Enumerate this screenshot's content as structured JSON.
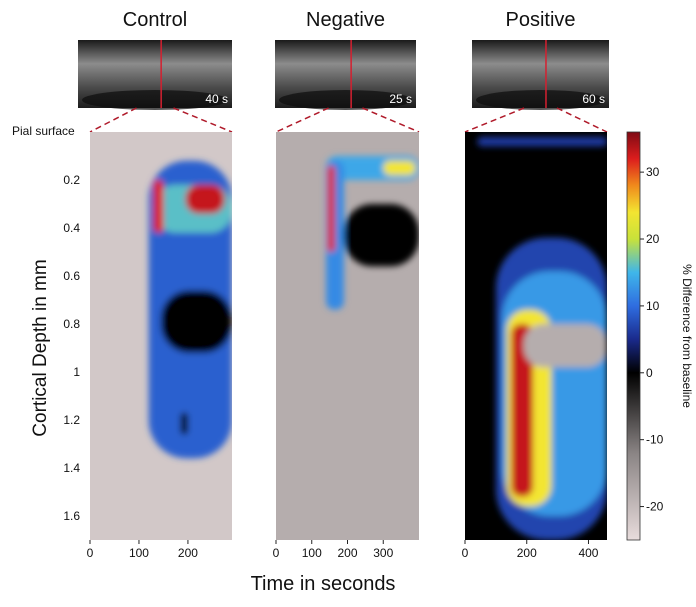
{
  "chart_data": {
    "type": "heatmap",
    "ylabel": "Cortical Depth in mm",
    "xlabel": "Time in seconds",
    "top_label": "Pial surface",
    "y_ticks": [
      0.2,
      0.4,
      0.6,
      0.8,
      1,
      1.2,
      1.4,
      1.6
    ],
    "y_tick_labels": [
      "0.2",
      "0.4",
      "0.6",
      "0.8",
      "1",
      "1.2",
      "1.4",
      "1.6"
    ],
    "ylim": [
      0,
      1.7
    ],
    "colorbar": {
      "label": "% Difference from baseline",
      "range": [
        -25,
        36
      ],
      "ticks": [
        30,
        20,
        10,
        0,
        -10,
        -20
      ],
      "tick_labels": [
        "30",
        "20",
        "10",
        "0",
        "-10",
        "-20"
      ],
      "stops": [
        {
          "value": -25,
          "color": "#e8dcdc"
        },
        {
          "value": -12,
          "color": "#8a8484"
        },
        {
          "value": 0,
          "color": "#000000"
        },
        {
          "value": 5,
          "color": "#1a2a8c"
        },
        {
          "value": 10,
          "color": "#2f6de0"
        },
        {
          "value": 15,
          "color": "#3fb6ea"
        },
        {
          "value": 20,
          "color": "#c8e23a"
        },
        {
          "value": 24,
          "color": "#f3e531"
        },
        {
          "value": 28,
          "color": "#f08a1c"
        },
        {
          "value": 32,
          "color": "#dc1d1d"
        },
        {
          "value": 36,
          "color": "#7f0a14"
        }
      ]
    },
    "panels": [
      {
        "title": "Control",
        "photo_time": "40 s",
        "xlim": [
          0,
          290
        ],
        "x_ticks": [
          0,
          100,
          200
        ],
        "x_tick_labels": [
          "0",
          "100",
          "200"
        ],
        "background": -22,
        "regions": [
          {
            "t0": 120,
            "t1": 290,
            "d0": 0.12,
            "d1": 1.36,
            "value": 9
          },
          {
            "t0": 130,
            "t1": 290,
            "d0": 0.22,
            "d1": 0.42,
            "value": 16
          },
          {
            "t0": 130,
            "t1": 150,
            "d0": 0.2,
            "d1": 0.42,
            "value": 32
          },
          {
            "t0": 195,
            "t1": 275,
            "d0": 0.22,
            "d1": 0.34,
            "value": 33
          },
          {
            "t0": 145,
            "t1": 290,
            "d0": 0.66,
            "d1": 0.92,
            "value": 0
          },
          {
            "t0": 185,
            "t1": 200,
            "d0": 1.17,
            "d1": 1.26,
            "value": 0
          }
        ]
      },
      {
        "title": "Negative",
        "photo_time": "25 s",
        "xlim": [
          0,
          400
        ],
        "x_ticks": [
          0,
          100,
          200,
          300
        ],
        "x_tick_labels": [
          "0",
          "100",
          "200",
          "300"
        ],
        "background": -18,
        "regions": [
          {
            "t0": 140,
            "t1": 400,
            "d0": 0.1,
            "d1": 0.2,
            "value": 14
          },
          {
            "t0": 300,
            "t1": 390,
            "d0": 0.12,
            "d1": 0.18,
            "value": 24
          },
          {
            "t0": 140,
            "t1": 190,
            "d0": 0.12,
            "d1": 0.74,
            "value": 12
          },
          {
            "t0": 145,
            "t1": 165,
            "d0": 0.14,
            "d1": 0.5,
            "value": 32
          },
          {
            "t0": 190,
            "t1": 400,
            "d0": 0.3,
            "d1": 0.56,
            "value": 0
          }
        ]
      },
      {
        "title": "Positive",
        "photo_time": "60 s",
        "xlim": [
          0,
          460
        ],
        "x_ticks": [
          0,
          200,
          400
        ],
        "x_tick_labels": [
          "0",
          "200",
          "400"
        ],
        "background": 0,
        "regions": [
          {
            "t0": 40,
            "t1": 460,
            "d0": 0.02,
            "d1": 0.06,
            "value": 6
          },
          {
            "t0": 100,
            "t1": 460,
            "d0": 0.44,
            "d1": 1.7,
            "value": 7
          },
          {
            "t0": 120,
            "t1": 460,
            "d0": 0.58,
            "d1": 1.6,
            "value": 13
          },
          {
            "t0": 135,
            "t1": 280,
            "d0": 0.74,
            "d1": 1.56,
            "value": 24
          },
          {
            "t0": 150,
            "t1": 220,
            "d0": 0.8,
            "d1": 1.52,
            "value": 33
          },
          {
            "t0": 190,
            "t1": 460,
            "d0": 0.8,
            "d1": 0.98,
            "value": -18
          }
        ]
      }
    ]
  }
}
